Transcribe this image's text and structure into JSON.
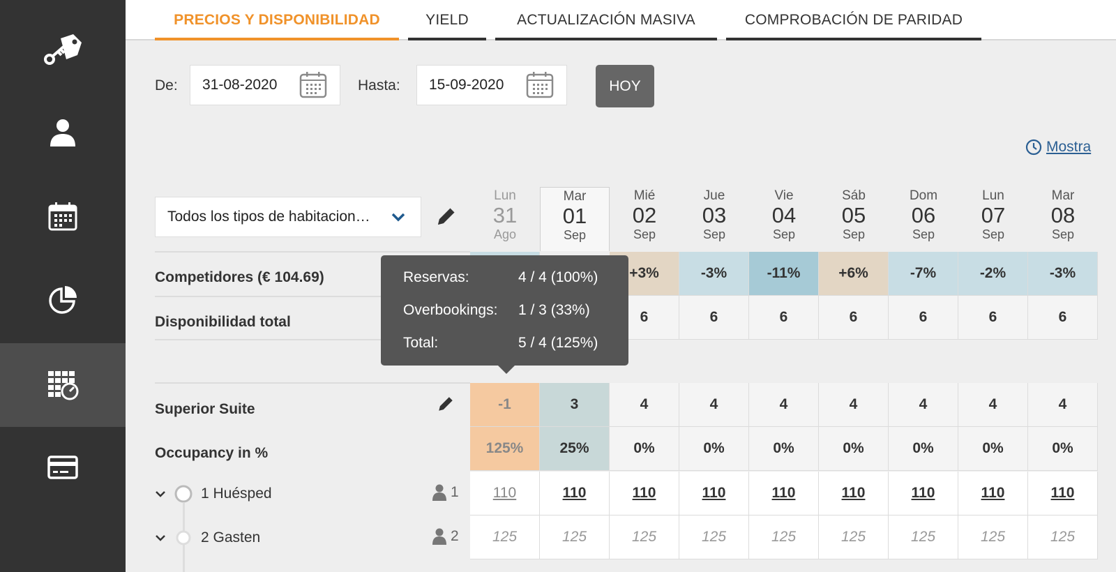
{
  "sidebar": {
    "items": [
      {
        "icon": "key-tag-icon"
      },
      {
        "icon": "user-icon"
      },
      {
        "icon": "calendar-icon"
      },
      {
        "icon": "pie-chart-icon"
      },
      {
        "icon": "rates-calendar-icon",
        "active": true
      },
      {
        "icon": "credit-card-icon"
      }
    ]
  },
  "tabs": [
    {
      "label": "PRECIOS Y DISPONIBILIDAD",
      "active": true
    },
    {
      "label": "YIELD"
    },
    {
      "label": "ACTUALIZACIÓN MASIVA"
    },
    {
      "label": "COMPROBACIÓN DE PARIDAD"
    }
  ],
  "filters": {
    "from_label": "De:",
    "from_value": "31-08-2020",
    "to_label": "Hasta:",
    "to_value": "15-09-2020",
    "today_button": "HOY"
  },
  "mostrar_link": "Mostra",
  "room_select": "Todos los tipos de habitacion…",
  "days": [
    {
      "dow": "Lun",
      "num": "31",
      "mon": "Ago"
    },
    {
      "dow": "Mar",
      "num": "01",
      "mon": "Sep"
    },
    {
      "dow": "Mié",
      "num": "02",
      "mon": "Sep"
    },
    {
      "dow": "Jue",
      "num": "03",
      "mon": "Sep"
    },
    {
      "dow": "Vie",
      "num": "04",
      "mon": "Sep"
    },
    {
      "dow": "Sáb",
      "num": "05",
      "mon": "Sep"
    },
    {
      "dow": "Dom",
      "num": "06",
      "mon": "Sep"
    },
    {
      "dow": "Lun",
      "num": "07",
      "mon": "Sep"
    },
    {
      "dow": "Mar",
      "num": "08",
      "mon": "Sep"
    }
  ],
  "rows": {
    "competitors": {
      "label": "Competidores (€ 104.69)",
      "values": [
        "",
        "",
        "+3%",
        "-3%",
        "-11%",
        "+6%",
        "-7%",
        "-2%",
        "-3%"
      ]
    },
    "availability": {
      "label": "Disponibilidad total",
      "values": [
        "",
        "",
        "6",
        "6",
        "6",
        "6",
        "6",
        "6",
        "6"
      ]
    },
    "room": {
      "label": "Superior Suite",
      "values": [
        "-1",
        "3",
        "4",
        "4",
        "4",
        "4",
        "4",
        "4",
        "4"
      ]
    },
    "occupancy": {
      "label": "Occupancy in %",
      "values": [
        "125%",
        "25%",
        "0%",
        "0%",
        "0%",
        "0%",
        "0%",
        "0%",
        "0%"
      ]
    },
    "guest1": {
      "label": "1 Huésped",
      "persons": "1",
      "values": [
        "110",
        "110",
        "110",
        "110",
        "110",
        "110",
        "110",
        "110",
        "110"
      ]
    },
    "guest2": {
      "label": "2 Gasten",
      "persons": "2",
      "values": [
        "125",
        "125",
        "125",
        "125",
        "125",
        "125",
        "125",
        "125",
        "125"
      ]
    }
  },
  "tooltip": {
    "reservas_label": "Reservas:",
    "reservas_value": "4 / 4 (100%)",
    "overbookings_label": "Overbookings:",
    "overbookings_value": "1 / 3 (33%)",
    "total_label": "Total:",
    "total_value": "5 / 4 (125%)"
  },
  "colors": {
    "accent": "#f0922a",
    "sidebar_bg": "#333333",
    "link": "#2b5f93",
    "overbooked": "#f5c9a0",
    "tooltip_bg": "#555555"
  }
}
